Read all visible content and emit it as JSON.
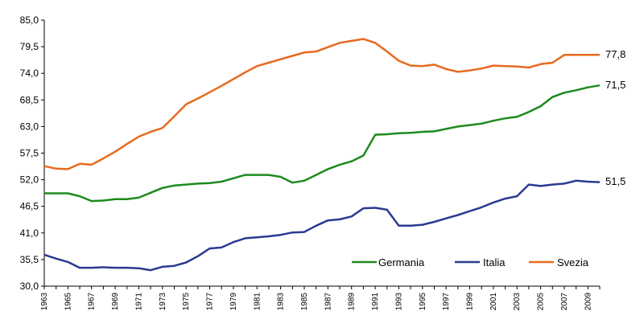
{
  "chart_data": {
    "type": "line",
    "title": "",
    "xlabel": "",
    "ylabel": "",
    "ylim": [
      30.0,
      85.0
    ],
    "y_ticks": [
      "85,0",
      "79,5",
      "74,0",
      "68,5",
      "63,0",
      "57,5",
      "52,0",
      "46,5",
      "41,0",
      "35,5",
      "30,0"
    ],
    "x_ticks": [
      "1963",
      "1965",
      "1967",
      "1969",
      "1971",
      "1973",
      "1975",
      "1977",
      "1979",
      "1981",
      "1983",
      "1985",
      "1987",
      "1989",
      "1991",
      "1993",
      "1995",
      "1997",
      "1999",
      "2001",
      "2003",
      "2005",
      "2007",
      "2009"
    ],
    "grid": false,
    "legend_position": "bottom-right",
    "x": [
      1963,
      1964,
      1965,
      1966,
      1967,
      1968,
      1969,
      1970,
      1971,
      1972,
      1973,
      1974,
      1975,
      1976,
      1977,
      1978,
      1979,
      1980,
      1981,
      1982,
      1983,
      1984,
      1985,
      1986,
      1987,
      1988,
      1989,
      1990,
      1991,
      1992,
      1993,
      1994,
      1995,
      1996,
      1997,
      1998,
      1999,
      2000,
      2001,
      2002,
      2003,
      2004,
      2005,
      2006,
      2007,
      2008,
      2009,
      2010
    ],
    "series": [
      {
        "name": "Germania",
        "color": "#1e8a1e",
        "values": [
          49.2,
          49.2,
          49.2,
          48.6,
          47.6,
          47.7,
          48.0,
          48.0,
          48.3,
          49.3,
          50.3,
          50.8,
          51.0,
          51.2,
          51.3,
          51.6,
          52.3,
          53.0,
          53.0,
          53.0,
          52.6,
          51.4,
          51.8,
          53.0,
          54.2,
          55.1,
          55.8,
          57.0,
          61.3,
          61.4,
          61.6,
          61.7,
          61.9,
          62.0,
          62.5,
          63.0,
          63.3,
          63.6,
          64.2,
          64.7,
          65.0,
          66.0,
          67.2,
          69.1,
          70.0,
          70.5,
          71.1,
          71.5
        ]
      },
      {
        "name": "Italia",
        "color": "#2b3a90",
        "values": [
          36.5,
          35.7,
          35.0,
          33.8,
          33.8,
          33.9,
          33.8,
          33.8,
          33.7,
          33.3,
          34.0,
          34.2,
          34.9,
          36.2,
          37.8,
          38.0,
          39.1,
          39.9,
          40.1,
          40.3,
          40.6,
          41.1,
          41.2,
          42.5,
          43.6,
          43.8,
          44.4,
          46.1,
          46.2,
          45.8,
          42.5,
          42.5,
          42.7,
          43.3,
          44.0,
          44.7,
          45.5,
          46.3,
          47.3,
          48.1,
          48.6,
          51.0,
          50.7,
          51.0,
          51.2,
          51.8,
          51.6,
          51.5
        ]
      },
      {
        "name": "Svezia",
        "color": "#e86a1e",
        "values": [
          54.8,
          54.3,
          54.2,
          55.3,
          55.1,
          56.4,
          57.8,
          59.4,
          60.9,
          61.9,
          62.7,
          65.1,
          67.6,
          68.8,
          70.1,
          71.4,
          72.8,
          74.2,
          75.5,
          76.2,
          76.9,
          77.6,
          78.3,
          78.5,
          79.4,
          80.3,
          80.7,
          81.1,
          80.3,
          78.5,
          76.6,
          75.6,
          75.5,
          75.8,
          74.9,
          74.3,
          74.6,
          75.0,
          75.6,
          75.5,
          75.4,
          75.2,
          75.9,
          76.2,
          77.8,
          77.8,
          77.8,
          77.8
        ]
      }
    ],
    "end_labels": [
      "71,5",
      "51,5",
      "77,8"
    ]
  }
}
